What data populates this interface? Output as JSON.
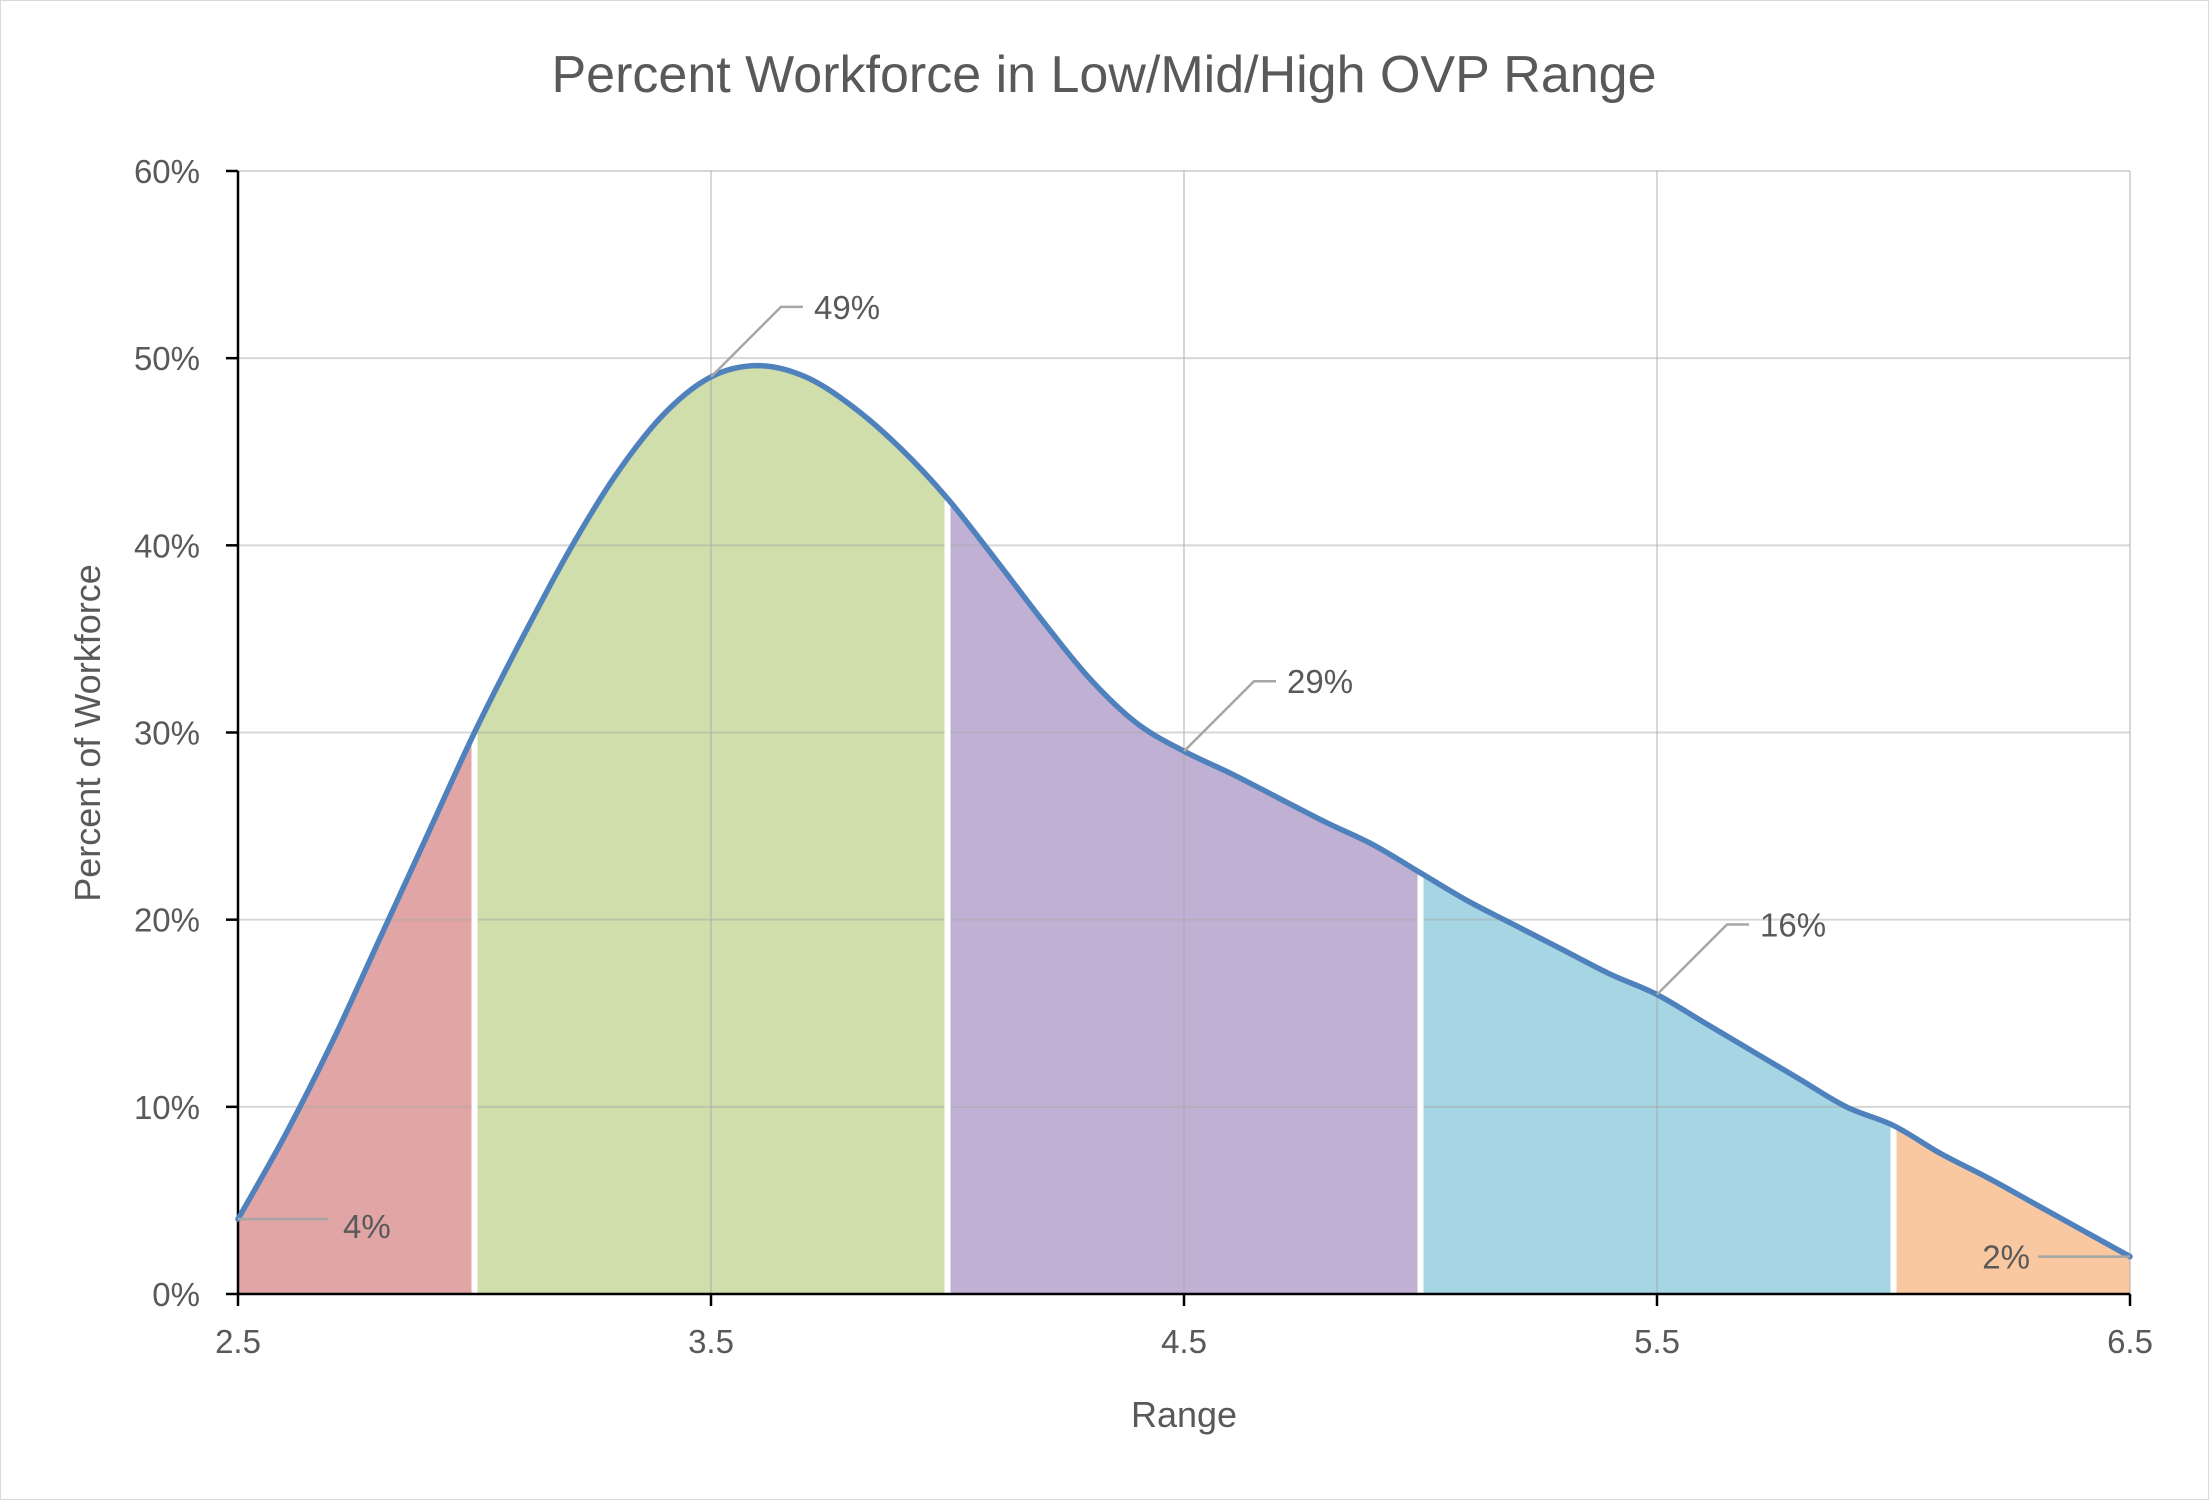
{
  "chart_data": {
    "type": "area",
    "title": "Percent Workforce in Low/Mid/High OVP Range",
    "xlabel": "Range",
    "ylabel": "Percent of Workforce",
    "xlim": [
      2.5,
      6.5
    ],
    "ylim": [
      0,
      0.6
    ],
    "x_ticks": [
      2.5,
      3.5,
      4.5,
      5.5,
      6.5
    ],
    "x_tick_labels": [
      "2.5",
      "3.5",
      "4.5",
      "5.5",
      "6.5"
    ],
    "y_ticks": [
      0,
      0.1,
      0.2,
      0.3,
      0.4,
      0.5,
      0.6
    ],
    "y_tick_labels": [
      "0%",
      "10%",
      "20%",
      "30%",
      "40%",
      "50%",
      "60%"
    ],
    "grid": true,
    "legend": "none",
    "curve": {
      "color": "#4f81bd",
      "points": [
        [
          2.5,
          0.04
        ],
        [
          2.6,
          0.085
        ],
        [
          2.7,
          0.135
        ],
        [
          2.8,
          0.19
        ],
        [
          2.9,
          0.245
        ],
        [
          3.0,
          0.3
        ],
        [
          3.1,
          0.35
        ],
        [
          3.2,
          0.397
        ],
        [
          3.3,
          0.438
        ],
        [
          3.4,
          0.47
        ],
        [
          3.5,
          0.49
        ],
        [
          3.6,
          0.496
        ],
        [
          3.7,
          0.49
        ],
        [
          3.8,
          0.474
        ],
        [
          3.9,
          0.452
        ],
        [
          4.0,
          0.425
        ],
        [
          4.1,
          0.393
        ],
        [
          4.2,
          0.36
        ],
        [
          4.3,
          0.329
        ],
        [
          4.4,
          0.305
        ],
        [
          4.5,
          0.29
        ],
        [
          4.6,
          0.278
        ],
        [
          4.7,
          0.265
        ],
        [
          4.8,
          0.252
        ],
        [
          4.9,
          0.24
        ],
        [
          5.0,
          0.225
        ],
        [
          5.1,
          0.21
        ],
        [
          5.2,
          0.197
        ],
        [
          5.3,
          0.184
        ],
        [
          5.4,
          0.171
        ],
        [
          5.5,
          0.16
        ],
        [
          5.6,
          0.145
        ],
        [
          5.7,
          0.13
        ],
        [
          5.8,
          0.115
        ],
        [
          5.9,
          0.1
        ],
        [
          6.0,
          0.09
        ],
        [
          6.1,
          0.075
        ],
        [
          6.2,
          0.062
        ],
        [
          6.3,
          0.048
        ],
        [
          6.4,
          0.034
        ],
        [
          6.5,
          0.02
        ]
      ]
    },
    "regions": [
      {
        "from": 2.5,
        "to": 3.0,
        "color": "#e0a5a4"
      },
      {
        "from": 3.0,
        "to": 4.0,
        "color": "#cfdeaa"
      },
      {
        "from": 4.0,
        "to": 5.0,
        "color": "#c0b1d4"
      },
      {
        "from": 5.0,
        "to": 6.0,
        "color": "#a6d5e3"
      },
      {
        "from": 6.0,
        "to": 6.5,
        "color": "#fac8a0"
      }
    ],
    "annotations": [
      {
        "text": "4%",
        "x": 2.5,
        "y": 0.04,
        "label_side": "right-down"
      },
      {
        "text": "49%",
        "x": 3.5,
        "y": 0.49,
        "label_side": "up-right"
      },
      {
        "text": "29%",
        "x": 4.5,
        "y": 0.29,
        "label_side": "up-right"
      },
      {
        "text": "16%",
        "x": 5.5,
        "y": 0.16,
        "label_side": "up-right"
      },
      {
        "text": "2%",
        "x": 6.5,
        "y": 0.02,
        "label_side": "left"
      }
    ]
  }
}
